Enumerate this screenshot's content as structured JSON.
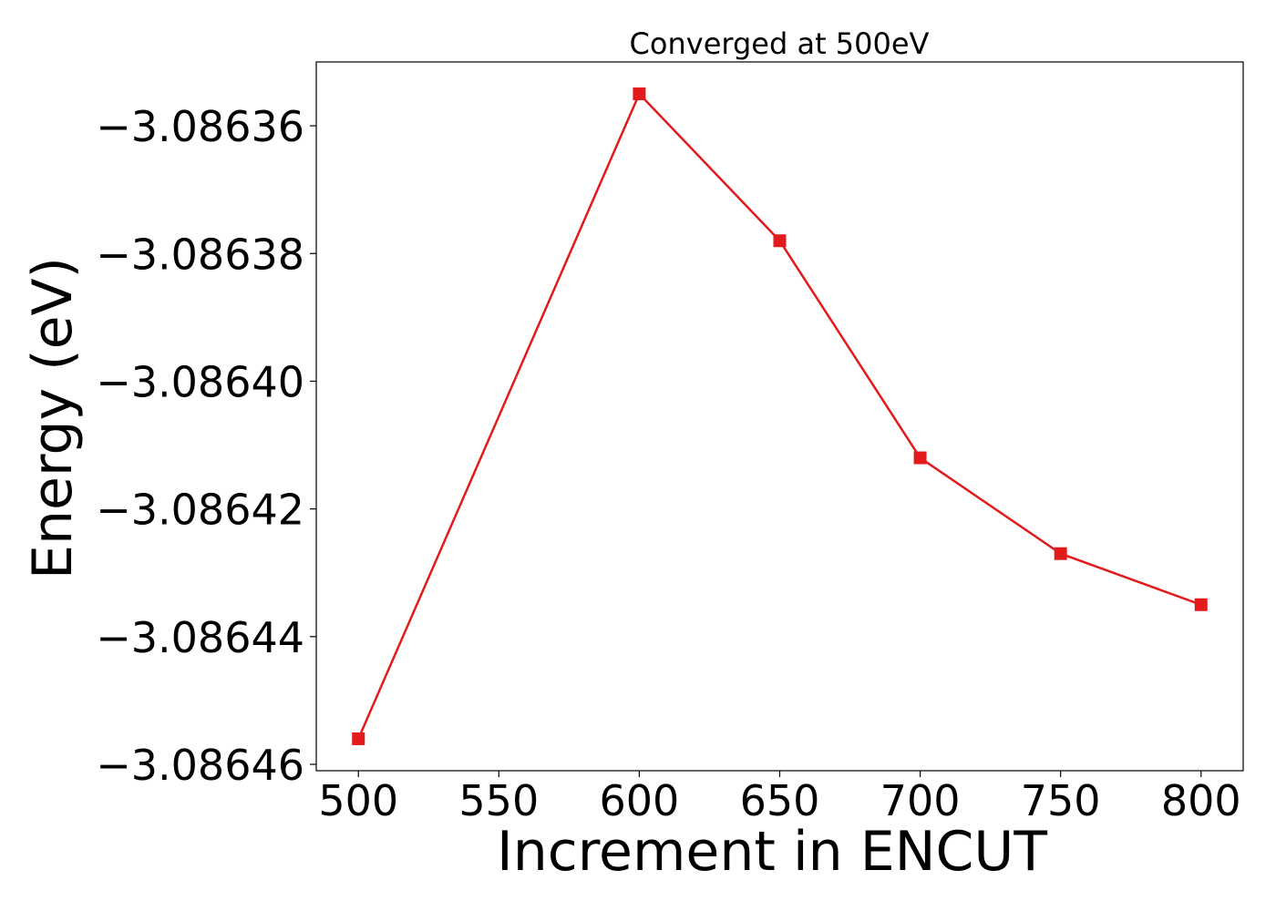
{
  "chart_data": {
    "type": "line",
    "title": "Converged at 500eV",
    "xlabel": "Increment in ENCUT",
    "ylabel": "Energy (eV)",
    "x": [
      500,
      600,
      650,
      700,
      750,
      800
    ],
    "series": [
      {
        "values": [
          -3.086456,
          -3.086355,
          -3.086378,
          -3.086412,
          -3.086427,
          -3.086435
        ],
        "color": "#e31a1c",
        "marker": "square"
      }
    ],
    "xticks": [
      500,
      550,
      600,
      650,
      700,
      750,
      800
    ],
    "xtick_labels": [
      "500",
      "550",
      "600",
      "650",
      "700",
      "750",
      "800"
    ],
    "yticks": [
      -3.08636,
      -3.08638,
      -3.0864,
      -3.08642,
      -3.08644,
      -3.08646
    ],
    "ytick_labels": [
      "−3.08636",
      "−3.08638",
      "−3.08640",
      "−3.08642",
      "−3.08644",
      "−3.08646"
    ],
    "xlim": [
      485,
      815
    ],
    "ylim": [
      -3.086461,
      -3.08635
    ],
    "grid": false,
    "legend": "none"
  }
}
